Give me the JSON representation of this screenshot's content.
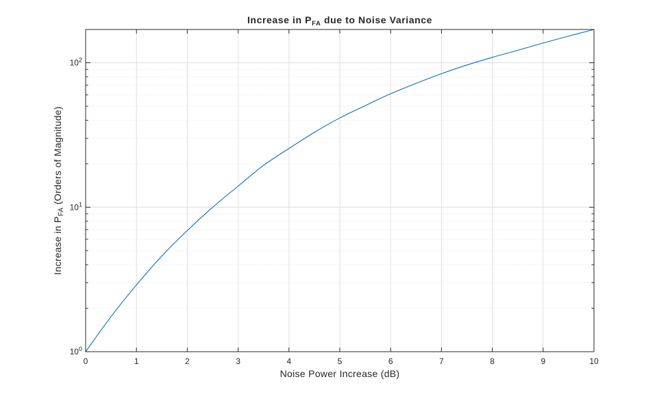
{
  "chart_data": {
    "type": "line",
    "title": {
      "main_pre": "Increase  in  P",
      "subscript": "FA",
      "main_post": "  due  to  Noise  Variance"
    },
    "xlabel": "Noise Power Increase (dB)",
    "ylabel": {
      "pre": "Increase  in  P",
      "subscript": "FA",
      "post": "  (Orders  of  Magnitude)"
    },
    "xlim": [
      0,
      10
    ],
    "ylim": [
      1,
      170
    ],
    "yscale": "log",
    "grid": true,
    "minor_grid": true,
    "x_ticks": [
      "0",
      "1",
      "2",
      "3",
      "4",
      "5",
      "6",
      "7",
      "8",
      "9",
      "10"
    ],
    "y_ticks": [
      {
        "value": 1,
        "base": "10",
        "exponent": "0"
      },
      {
        "value": 10,
        "base": "10",
        "exponent": "1"
      },
      {
        "value": 100,
        "base": "10",
        "exponent": "2"
      }
    ],
    "series": [
      {
        "color": "#0072bd",
        "x": [
          0,
          0.5,
          1,
          1.5,
          2,
          2.5,
          3,
          3.5,
          4,
          4.5,
          5,
          5.5,
          6,
          6.5,
          7,
          7.5,
          8,
          8.5,
          9,
          9.5,
          10
        ],
        "y": [
          1,
          1.75,
          2.9,
          4.6,
          6.9,
          10,
          14,
          19.5,
          25.5,
          33,
          41.5,
          50.5,
          61,
          72,
          84,
          96.5,
          109,
          122,
          137,
          153,
          170
        ]
      }
    ]
  }
}
